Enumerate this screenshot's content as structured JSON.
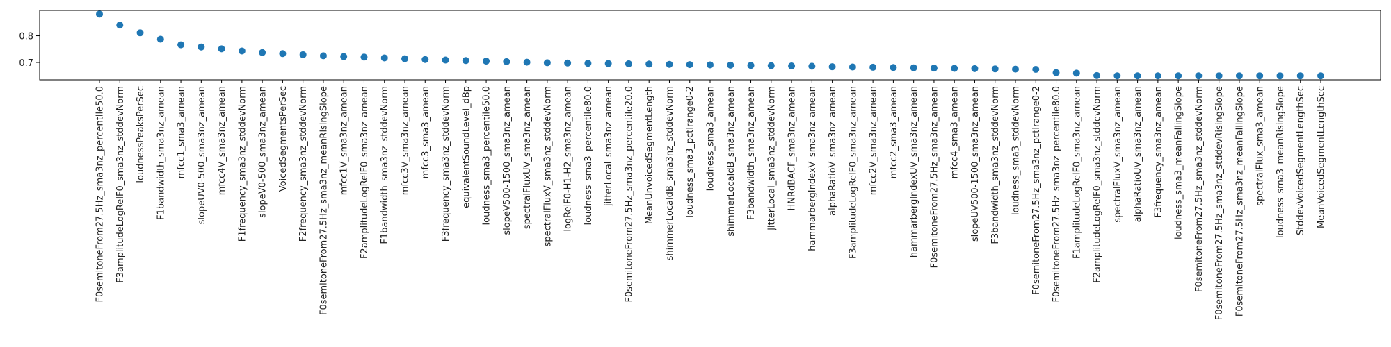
{
  "chart_data": {
    "type": "scatter",
    "title": "",
    "xlabel": "",
    "ylabel": "",
    "ylim": [
      0.635,
      0.895
    ],
    "yticks": [
      0.7,
      0.8
    ],
    "grid": false,
    "marker_color": "#1f77b4",
    "categories": [
      "F0semitoneFrom27.5Hz_sma3nz_percentile50.0",
      "F3amplitudeLogRelF0_sma3nz_stddevNorm",
      "loudnessPeaksPerSec",
      "F1bandwidth_sma3nz_amean",
      "mfcc1_sma3_amean",
      "slopeUV0-500_sma3nz_amean",
      "mfcc4V_sma3nz_amean",
      "F1frequency_sma3nz_stddevNorm",
      "slopeV0-500_sma3nz_amean",
      "VoicedSegmentsPerSec",
      "F2frequency_sma3nz_stddevNorm",
      "F0semitoneFrom27.5Hz_sma3nz_meanRisingSlope",
      "mfcc1V_sma3nz_amean",
      "F2amplitudeLogRelF0_sma3nz_amean",
      "F1bandwidth_sma3nz_stddevNorm",
      "mfcc3V_sma3nz_amean",
      "mfcc3_sma3_amean",
      "F3frequency_sma3nz_stddevNorm",
      "equivalentSoundLevel_dBp",
      "loudness_sma3_percentile50.0",
      "slopeV500-1500_sma3nz_amean",
      "spectralFluxUV_sma3nz_amean",
      "spectralFluxV_sma3nz_stddevNorm",
      "logRelF0-H1-H2_sma3nz_amean",
      "loudness_sma3_percentile80.0",
      "jitterLocal_sma3nz_amean",
      "F0semitoneFrom27.5Hz_sma3nz_percentile20.0",
      "MeanUnvoicedSegmentLength",
      "shimmerLocaldB_sma3nz_stddevNorm",
      "loudness_sma3_pctlrange0-2",
      "loudness_sma3_amean",
      "shimmerLocaldB_sma3nz_amean",
      "F3bandwidth_sma3nz_amean",
      "jitterLocal_sma3nz_stddevNorm",
      "HNRdBACF_sma3nz_amean",
      "hammarbergIndexV_sma3nz_amean",
      "alphaRatioV_sma3nz_amean",
      "F3amplitudeLogRelF0_sma3nz_amean",
      "mfcc2V_sma3nz_amean",
      "mfcc2_sma3_amean",
      "hammarbergIndexUV_sma3nz_amean",
      "F0semitoneFrom27.5Hz_sma3nz_amean",
      "mfcc4_sma3_amean",
      "slopeUV500-1500_sma3nz_amean",
      "F3bandwidth_sma3nz_stddevNorm",
      "loudness_sma3_stddevNorm",
      "F0semitoneFrom27.5Hz_sma3nz_pctlrange0-2",
      "F0semitoneFrom27.5Hz_sma3nz_percentile80.0",
      "F1amplitudeLogRelF0_sma3nz_amean",
      "F2amplitudeLogRelF0_sma3nz_stddevNorm",
      "spectralFluxV_sma3nz_amean",
      "alphaRatioUV_sma3nz_amean",
      "F3frequency_sma3nz_amean",
      "loudness_sma3_meanFallingSlope",
      "F0semitoneFrom27.5Hz_sma3nz_stddevNorm",
      "F0semitoneFrom27.5Hz_sma3nz_stddevRisingSlope",
      "F0semitoneFrom27.5Hz_sma3nz_meanFallingSlope",
      "spectralFlux_sma3_amean",
      "loudness_sma3_meanRisingSlope",
      "StddevVoicedSegmentLengthSec",
      "MeanVoicedSegmentLengthSec"
    ],
    "values": [
      0.881,
      0.84,
      0.811,
      0.787,
      0.766,
      0.758,
      0.751,
      0.743,
      0.737,
      0.733,
      0.729,
      0.725,
      0.722,
      0.72,
      0.717,
      0.714,
      0.711,
      0.709,
      0.707,
      0.705,
      0.703,
      0.701,
      0.699,
      0.698,
      0.697,
      0.696,
      0.695,
      0.694,
      0.693,
      0.692,
      0.691,
      0.69,
      0.689,
      0.688,
      0.687,
      0.686,
      0.684,
      0.683,
      0.682,
      0.681,
      0.68,
      0.679,
      0.678,
      0.677,
      0.676,
      0.675,
      0.674,
      0.662,
      0.66,
      0.651,
      0.65,
      0.65,
      0.65,
      0.65,
      0.65,
      0.65,
      0.65,
      0.65,
      0.65,
      0.65,
      0.65
    ]
  }
}
